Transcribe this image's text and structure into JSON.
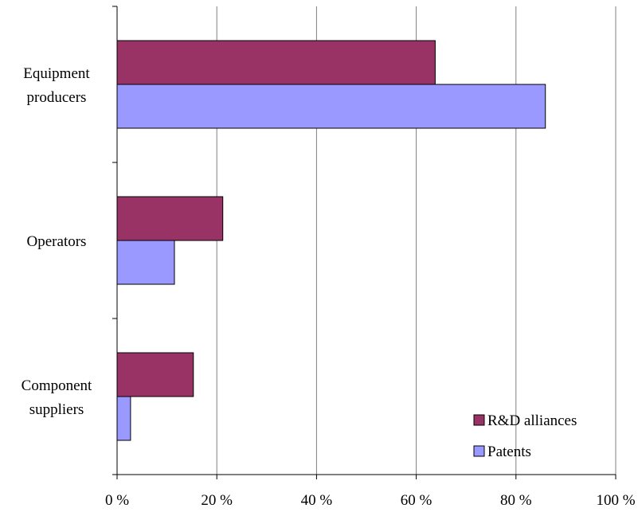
{
  "chart_data": {
    "type": "bar",
    "orientation": "horizontal",
    "categories": [
      [
        "Equipment",
        "producers"
      ],
      [
        "Operators"
      ],
      [
        "Component",
        "suppliers"
      ]
    ],
    "series": [
      {
        "name": "R&D alliances",
        "color": "#993366",
        "values": [
          63.8,
          21.2,
          15.3
        ]
      },
      {
        "name": "Patents",
        "color": "#9999ff",
        "values": [
          85.9,
          11.5,
          2.7
        ]
      }
    ],
    "xlim": [
      0,
      100
    ],
    "xticks": [
      0,
      20,
      40,
      60,
      80,
      100
    ],
    "tick_suffix": " %",
    "grid": true,
    "legend_position": "bottom-right"
  }
}
